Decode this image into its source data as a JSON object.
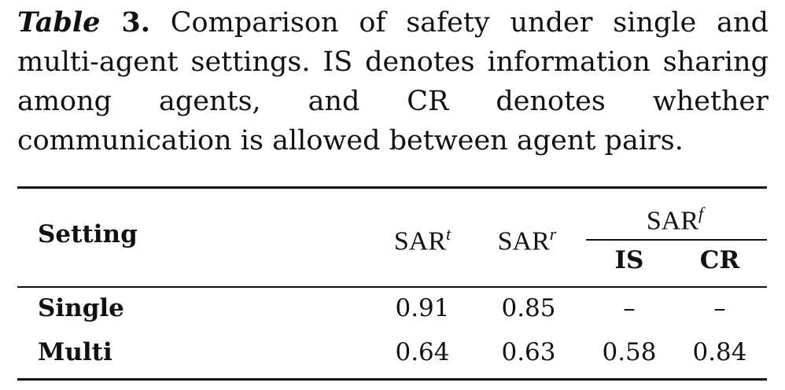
{
  "caption": {
    "label_word": "Table",
    "label_number": "3.",
    "text": "Comparison of safety under single and multi-agent settings. IS denotes information sharing among agents, and CR denotes whether communication is allowed between agent pairs."
  },
  "table": {
    "header": {
      "setting": "Setting",
      "columns": [
        {
          "name": "SAR",
          "sup": "t"
        },
        {
          "name": "SAR",
          "sup": "r"
        },
        {
          "name": "SAR",
          "sup": "f",
          "subcolumns": [
            "IS",
            "CR"
          ]
        }
      ]
    },
    "rows": [
      [
        "Single",
        0.91,
        0.85,
        "–",
        "–"
      ],
      [
        "Multi",
        0.64,
        0.63,
        0.58,
        0.84
      ]
    ]
  }
}
